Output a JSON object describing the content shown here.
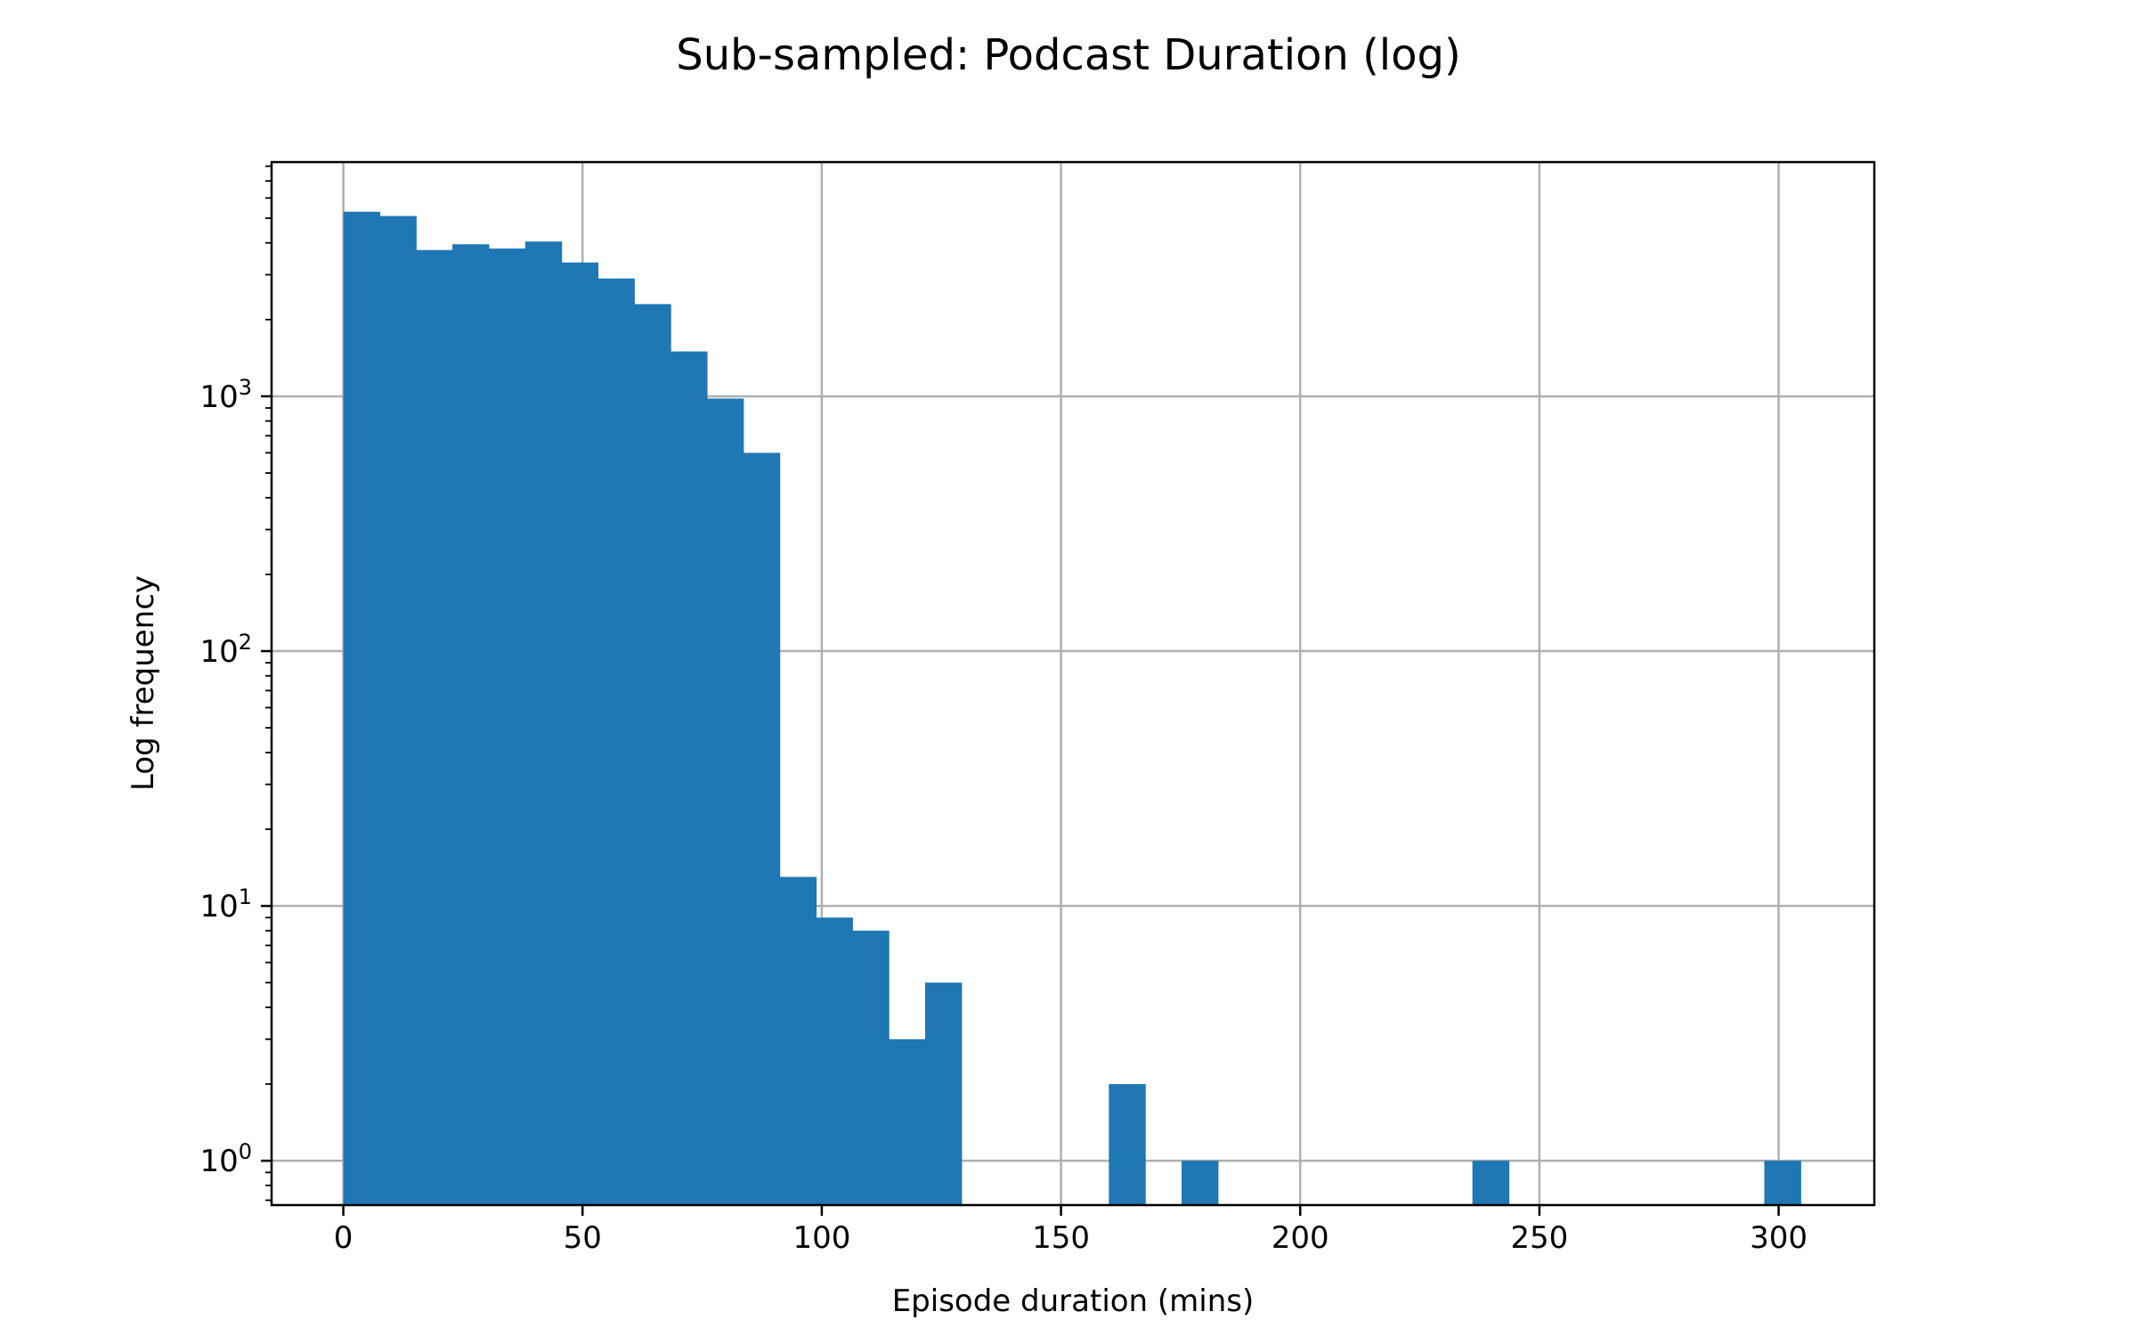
{
  "chart_data": {
    "type": "bar",
    "title": "Sub-sampled: Podcast Duration (log)",
    "xlabel": "Episode duration (mins)",
    "ylabel": "Log frequency",
    "yscale": "log",
    "xlim": [
      -15,
      320
    ],
    "ylim": [
      0.67,
      8300
    ],
    "grid": true,
    "x_ticks": [
      0,
      50,
      100,
      150,
      200,
      250,
      300
    ],
    "y_ticks": [
      {
        "value": 1,
        "base": "10",
        "exp": "0"
      },
      {
        "value": 10,
        "base": "10",
        "exp": "1"
      },
      {
        "value": 100,
        "base": "10",
        "exp": "2"
      },
      {
        "value": 1000,
        "base": "10",
        "exp": "3"
      }
    ],
    "bin_width": 7.6,
    "bars": [
      {
        "x0": 0.0,
        "value": 5300
      },
      {
        "x0": 7.6,
        "value": 5100
      },
      {
        "x0": 15.2,
        "value": 3750
      },
      {
        "x0": 22.8,
        "value": 3950
      },
      {
        "x0": 30.4,
        "value": 3800
      },
      {
        "x0": 38.0,
        "value": 4050
      },
      {
        "x0": 45.6,
        "value": 3350
      },
      {
        "x0": 53.2,
        "value": 2900
      },
      {
        "x0": 60.8,
        "value": 2300
      },
      {
        "x0": 68.4,
        "value": 1500
      },
      {
        "x0": 76.0,
        "value": 980
      },
      {
        "x0": 83.6,
        "value": 600
      },
      {
        "x0": 91.2,
        "value": 13
      },
      {
        "x0": 98.8,
        "value": 9
      },
      {
        "x0": 106.4,
        "value": 8
      },
      {
        "x0": 114.0,
        "value": 3
      },
      {
        "x0": 121.6,
        "value": 5
      },
      {
        "x0": 160.0,
        "value": 2
      },
      {
        "x0": 175.2,
        "value": 1
      },
      {
        "x0": 236.0,
        "value": 1
      },
      {
        "x0": 297.0,
        "value": 1
      }
    ],
    "bar_color": "#1f77b4",
    "grid_color": "#b0b0b0"
  }
}
